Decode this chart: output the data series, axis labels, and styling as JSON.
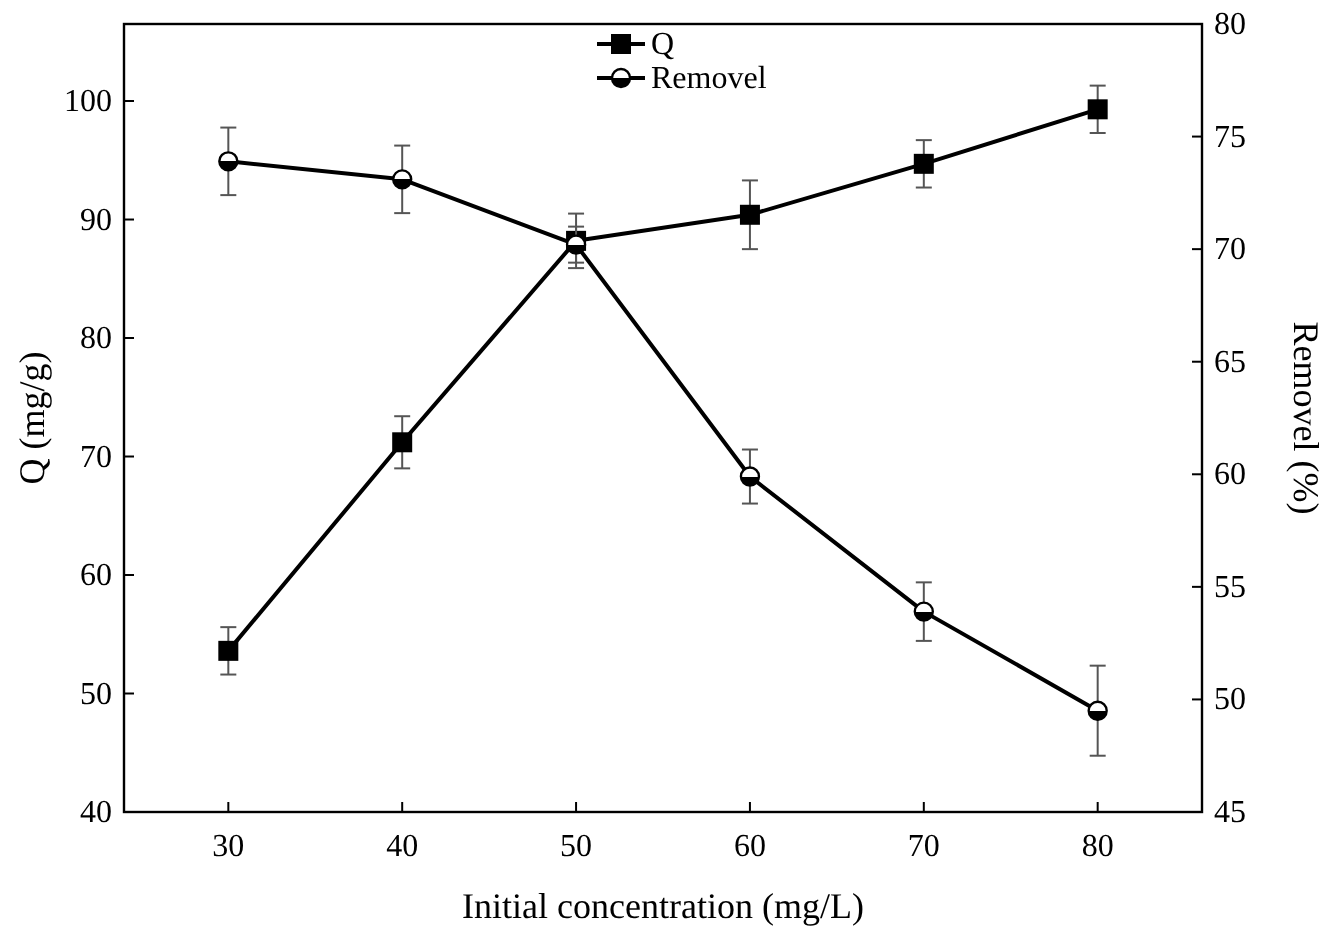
{
  "chart_data": {
    "type": "line",
    "xlabel": "Initial concentration (mg/L)",
    "ylabel": "Q (mg/g)",
    "y2label": "Removel (%)",
    "x": [
      30,
      40,
      50,
      60,
      70,
      80
    ],
    "xlim": [
      24,
      86
    ],
    "xticks": [
      30,
      40,
      50,
      60,
      70,
      80
    ],
    "ylim": [
      40,
      106.5
    ],
    "yticks": [
      40,
      50,
      60,
      70,
      80,
      90,
      100
    ],
    "y2lim": [
      45,
      80
    ],
    "y2ticks": [
      45,
      50,
      55,
      60,
      65,
      70,
      75,
      80
    ],
    "legend": "top",
    "grid": false,
    "line_style": "solid",
    "series": [
      {
        "name": "Q",
        "color": "#000000",
        "marker": "square",
        "values": [
          53.6,
          71.2,
          88.2,
          90.4,
          94.7,
          99.3
        ],
        "errors": [
          2,
          2.2,
          2.3,
          2.9,
          2,
          2
        ]
      },
      {
        "name": "Removel",
        "color": "#000000",
        "marker": "circle",
        "axis": "y2",
        "values": [
          73.9,
          73.1,
          70.2,
          59.9,
          53.9,
          49.5
        ],
        "errors": [
          1.5,
          1.5,
          0.8,
          1.2,
          1.3,
          2
        ]
      }
    ]
  }
}
